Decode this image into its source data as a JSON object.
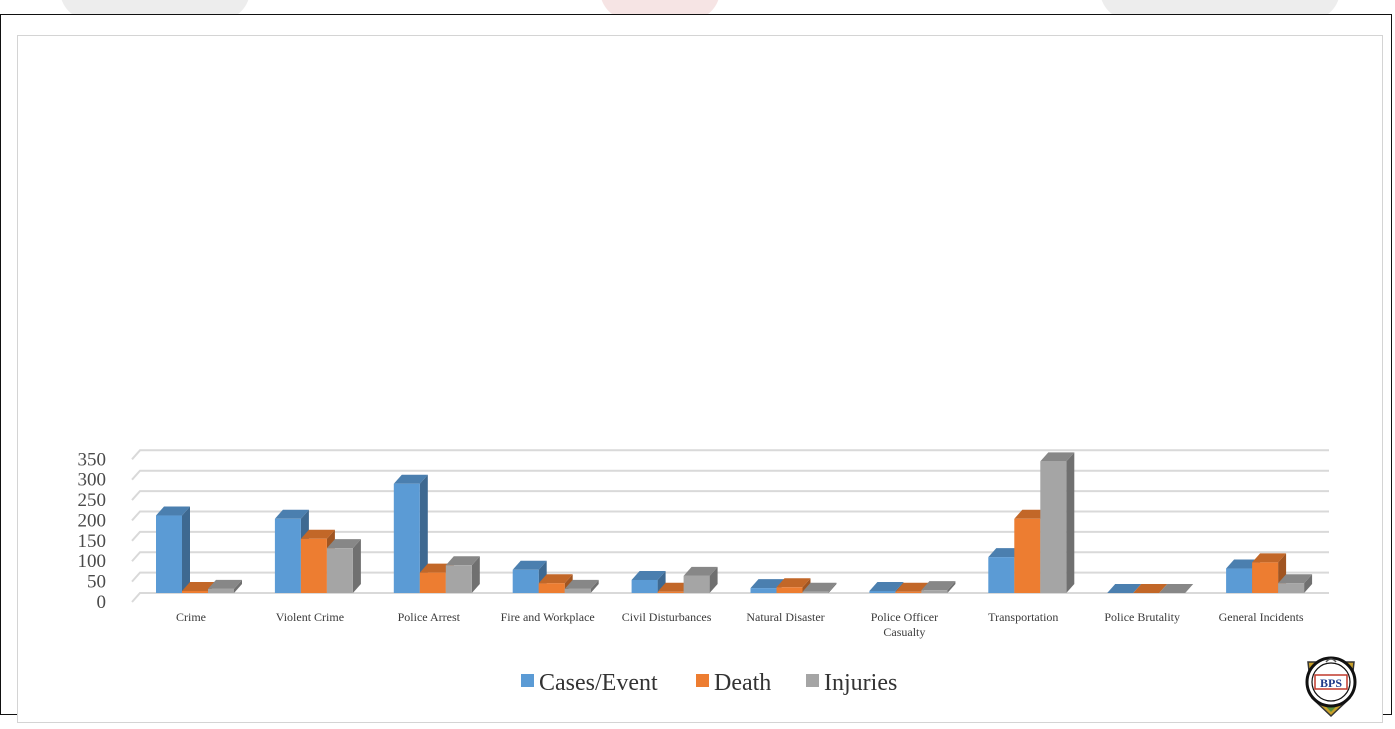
{
  "chart_data": {
    "type": "bar",
    "style": "3d-clustered-column",
    "title": "",
    "xlabel": "",
    "ylabel": "",
    "ylim": [
      0,
      350
    ],
    "yticks": [
      0,
      50,
      100,
      150,
      200,
      250,
      300,
      350
    ],
    "grid": true,
    "legend_position": "bottom",
    "categories": [
      [
        "Crime"
      ],
      [
        "Violent Crime"
      ],
      [
        "Police Arrest"
      ],
      [
        "Fire and Workplace"
      ],
      [
        "Civil Disturbances"
      ],
      [
        "Natural Disaster"
      ],
      [
        "Police Officer",
        "Casualty"
      ],
      [
        "Transportation"
      ],
      [
        "Police Brutality"
      ],
      [
        "General Incidents"
      ]
    ],
    "series": [
      {
        "name": "Cases/Event",
        "color": "#5b9bd5",
        "values": [
          190,
          182,
          268,
          57,
          32,
          12,
          5,
          88,
          0,
          60
        ]
      },
      {
        "name": "Death",
        "color": "#ed7d31",
        "values": [
          5,
          133,
          50,
          24,
          3,
          14,
          3,
          182,
          0,
          75
        ]
      },
      {
        "name": "Injuries",
        "color": "#a5a5a5",
        "values": [
          10,
          110,
          68,
          10,
          42,
          3,
          7,
          323,
          0,
          24
        ]
      }
    ]
  },
  "logo": {
    "text": "BPS",
    "icon": "bps-seal-logo"
  }
}
